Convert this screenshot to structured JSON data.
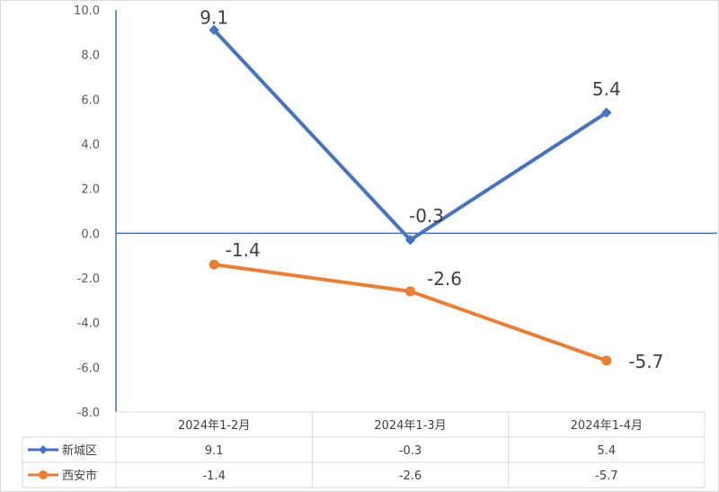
{
  "chart_data": {
    "type": "line",
    "categories": [
      "2024年1-2月",
      "2024年1-3月",
      "2024年1-4月"
    ],
    "series": [
      {
        "name": "新城区",
        "values": [
          9.1,
          -0.3,
          5.4
        ],
        "color": "#4472C4",
        "marker": "diamond",
        "labels": [
          "9.1",
          "-0.3",
          "5.4"
        ]
      },
      {
        "name": "西安市",
        "values": [
          -1.4,
          -2.6,
          -5.7
        ],
        "color": "#ED7D31",
        "marker": "circle",
        "labels": [
          "-1.4",
          "-2.6",
          "-5.7"
        ]
      }
    ],
    "ylim": [
      -8.0,
      10.0
    ],
    "yticks": [
      "10.0",
      "8.0",
      "6.0",
      "4.0",
      "2.0",
      "0.0",
      "-2.0",
      "-4.0",
      "-6.0",
      "-8.0"
    ],
    "gridlines": false,
    "data_table": true,
    "legend": "data-table"
  }
}
